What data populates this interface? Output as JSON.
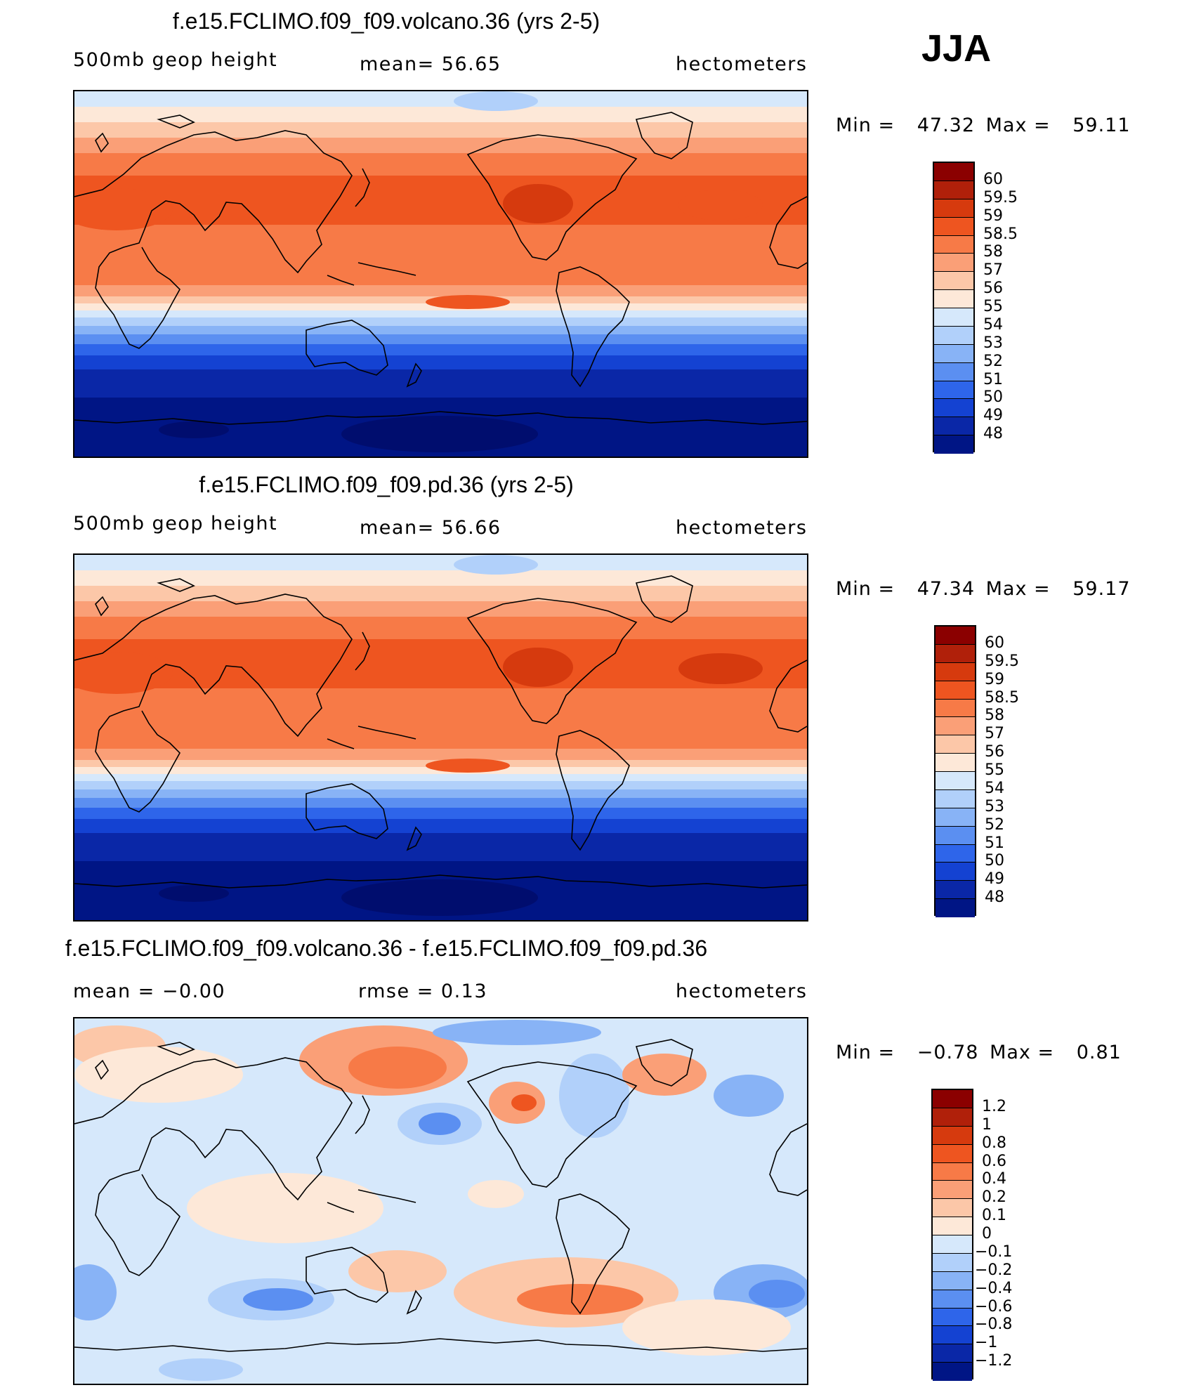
{
  "season": "JJA",
  "panels": [
    {
      "title": "f.e15.FCLIMO.f09_f09.volcano.36 (yrs 2-5)",
      "left_label": "500mb  geop  height",
      "mid_label": "mean=   56.65",
      "right_label": "hectometers",
      "min_label": "Min  =",
      "min_value": "47.32",
      "max_label": "Max  =",
      "max_value": "59.11",
      "kind": "abs",
      "colorbar": {
        "labels": [
          "60",
          "59.5",
          "59",
          "58.5",
          "58",
          "57",
          "56",
          "55",
          "54",
          "53",
          "52",
          "51",
          "50",
          "49",
          "48"
        ],
        "colors": [
          "#8b0000",
          "#b0200a",
          "#d63a0e",
          "#ee5520",
          "#f77a47",
          "#fa9f77",
          "#fcc7a8",
          "#fde8d8",
          "#d6e8fb",
          "#b1d0fa",
          "#88b3f6",
          "#5b8ff1",
          "#2e65ea",
          "#1442d2",
          "#0a27a7",
          "#001585"
        ]
      }
    },
    {
      "title": "f.e15.FCLIMO.f09_f09.pd.36 (yrs 2-5)",
      "left_label": "500mb  geop  height",
      "mid_label": "mean=   56.66",
      "right_label": "hectometers",
      "min_label": "Min  =",
      "min_value": "47.34",
      "max_label": "Max  =",
      "max_value": "59.17",
      "kind": "abs",
      "colorbar": {
        "labels": [
          "60",
          "59.5",
          "59",
          "58.5",
          "58",
          "57",
          "56",
          "55",
          "54",
          "53",
          "52",
          "51",
          "50",
          "49",
          "48"
        ],
        "colors": [
          "#8b0000",
          "#b0200a",
          "#d63a0e",
          "#ee5520",
          "#f77a47",
          "#fa9f77",
          "#fcc7a8",
          "#fde8d8",
          "#d6e8fb",
          "#b1d0fa",
          "#88b3f6",
          "#5b8ff1",
          "#2e65ea",
          "#1442d2",
          "#0a27a7",
          "#001585"
        ]
      }
    },
    {
      "title": "f.e15.FCLIMO.f09_f09.volcano.36 - f.e15.FCLIMO.f09_f09.pd.36",
      "left_label": "mean  =    −0.00",
      "mid_label": "rmse  =     0.13",
      "right_label": "hectometers",
      "min_label": "Min  =",
      "min_value": "−0.78",
      "max_label": "Max  =",
      "max_value": "0.81",
      "kind": "diff",
      "colorbar": {
        "labels": [
          "1.2",
          "1",
          "0.8",
          "0.6",
          "0.4",
          "0.2",
          "0.1",
          "0",
          "−0.1",
          "−0.2",
          "−0.4",
          "−0.6",
          "−0.8",
          "−1",
          "−1.2"
        ],
        "colors": [
          "#8b0000",
          "#b0200a",
          "#d63a0e",
          "#ee5520",
          "#f77a47",
          "#fa9f77",
          "#fcc7a8",
          "#fde8d8",
          "#d6e8fb",
          "#b1d0fa",
          "#88b3f6",
          "#5b8ff1",
          "#2e65ea",
          "#1442d2",
          "#0a27a7",
          "#001585"
        ]
      }
    }
  ]
}
